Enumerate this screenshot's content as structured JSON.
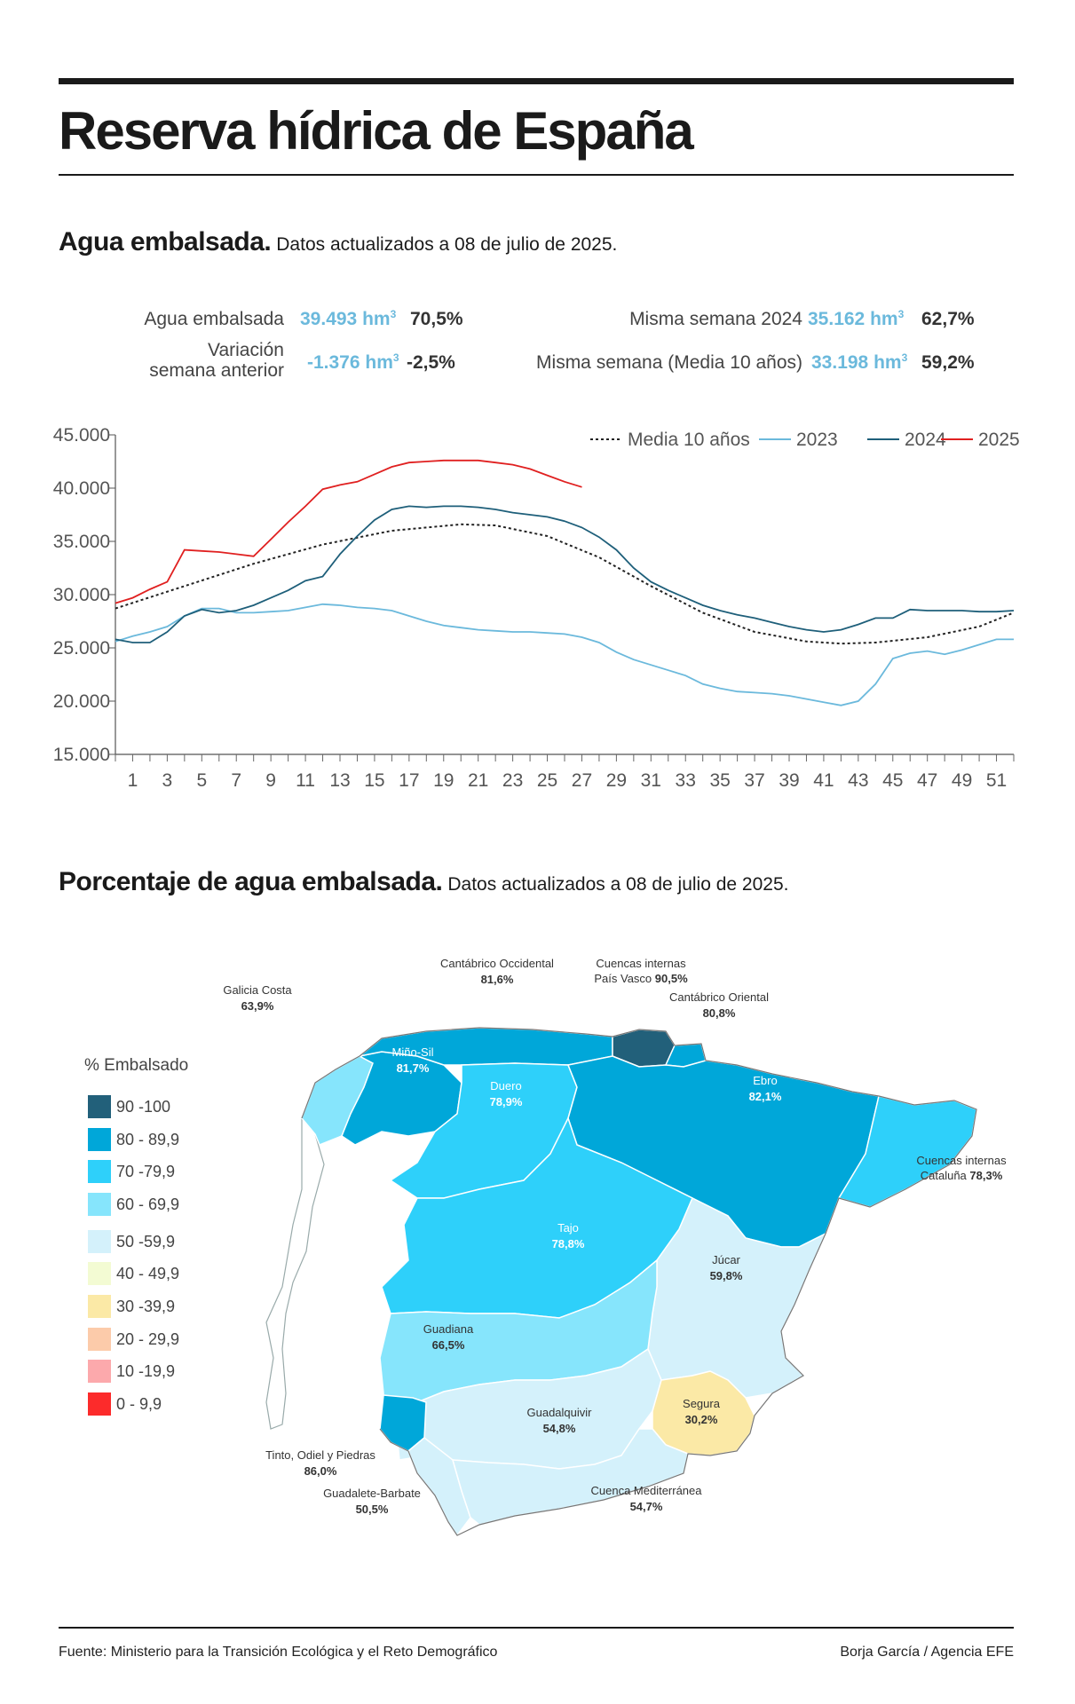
{
  "title": "Reserva hídrica de España",
  "section1": {
    "bold": "Agua embalsada.",
    "rest": "Datos actualizados a 08 de julio de 2025."
  },
  "stats": {
    "agua_label": "Agua embalsada",
    "agua_value": "39.493 hm",
    "agua_pct": "70,5%",
    "var_label_1": "Variación",
    "var_label_2": "semana anterior",
    "var_value": "-1.376 hm",
    "var_pct": "-2,5%",
    "s2024_label": "Misma semana 2024",
    "s2024_value": "35.162 hm",
    "s2024_pct": "62,7%",
    "media_label": "Misma semana (Media 10 años)",
    "media_value": "33.198 hm",
    "media_pct": "59,2%",
    "unit_exp": "3"
  },
  "chart_data": {
    "type": "line",
    "xlabel": "",
    "ylabel": "",
    "xlim": [
      0,
      52
    ],
    "ylim": [
      15000,
      45000
    ],
    "x_ticks": [
      1,
      3,
      5,
      7,
      9,
      11,
      13,
      15,
      17,
      19,
      21,
      23,
      25,
      27,
      29,
      31,
      33,
      35,
      37,
      39,
      41,
      43,
      45,
      47,
      49,
      51
    ],
    "y_ticks": [
      {
        "value": 45000,
        "label": "45.000"
      },
      {
        "value": 40000,
        "label": "40.000"
      },
      {
        "value": 35000,
        "label": "35.000"
      },
      {
        "value": 30000,
        "label": "30.000"
      },
      {
        "value": 25000,
        "label": "25.000"
      },
      {
        "value": 20000,
        "label": "20.000"
      },
      {
        "value": 15000,
        "label": "15.000"
      }
    ],
    "series": [
      {
        "name": "Media 10 años",
        "color": "#222222",
        "dash": true,
        "points": [
          [
            0,
            28700
          ],
          [
            4,
            30800
          ],
          [
            8,
            32900
          ],
          [
            12,
            34700
          ],
          [
            16,
            36000
          ],
          [
            20,
            36600
          ],
          [
            22,
            36500
          ],
          [
            25,
            35500
          ],
          [
            28,
            33500
          ],
          [
            31,
            30800
          ],
          [
            34,
            28300
          ],
          [
            37,
            26500
          ],
          [
            40,
            25600
          ],
          [
            42,
            25400
          ],
          [
            44,
            25500
          ],
          [
            47,
            26000
          ],
          [
            50,
            27000
          ],
          [
            52,
            28300
          ]
        ]
      },
      {
        "name": "2023",
        "color": "#6bb9dc",
        "dash": false,
        "points": [
          [
            0,
            25600
          ],
          [
            1,
            26100
          ],
          [
            2,
            26500
          ],
          [
            3,
            27000
          ],
          [
            4,
            28000
          ],
          [
            5,
            28700
          ],
          [
            6,
            28700
          ],
          [
            7,
            28300
          ],
          [
            8,
            28300
          ],
          [
            9,
            28400
          ],
          [
            10,
            28500
          ],
          [
            11,
            28800
          ],
          [
            12,
            29100
          ],
          [
            13,
            29000
          ],
          [
            14,
            28800
          ],
          [
            15,
            28700
          ],
          [
            16,
            28500
          ],
          [
            17,
            28000
          ],
          [
            18,
            27500
          ],
          [
            19,
            27100
          ],
          [
            20,
            26900
          ],
          [
            21,
            26700
          ],
          [
            22,
            26600
          ],
          [
            23,
            26500
          ],
          [
            24,
            26500
          ],
          [
            25,
            26400
          ],
          [
            26,
            26300
          ],
          [
            27,
            26000
          ],
          [
            28,
            25500
          ],
          [
            29,
            24600
          ],
          [
            30,
            23900
          ],
          [
            31,
            23400
          ],
          [
            32,
            22900
          ],
          [
            33,
            22400
          ],
          [
            34,
            21600
          ],
          [
            35,
            21200
          ],
          [
            36,
            20900
          ],
          [
            37,
            20800
          ],
          [
            38,
            20700
          ],
          [
            39,
            20500
          ],
          [
            40,
            20200
          ],
          [
            41,
            19900
          ],
          [
            42,
            19600
          ],
          [
            43,
            20000
          ],
          [
            44,
            21600
          ],
          [
            45,
            24000
          ],
          [
            46,
            24500
          ],
          [
            47,
            24700
          ],
          [
            48,
            24400
          ],
          [
            49,
            24800
          ],
          [
            50,
            25300
          ],
          [
            51,
            25800
          ],
          [
            52,
            25800
          ]
        ]
      },
      {
        "name": "2024",
        "color": "#1e5f7a",
        "dash": false,
        "points": [
          [
            0,
            25800
          ],
          [
            1,
            25500
          ],
          [
            2,
            25500
          ],
          [
            3,
            26500
          ],
          [
            4,
            28000
          ],
          [
            5,
            28600
          ],
          [
            6,
            28300
          ],
          [
            7,
            28500
          ],
          [
            8,
            29000
          ],
          [
            9,
            29700
          ],
          [
            10,
            30400
          ],
          [
            11,
            31300
          ],
          [
            12,
            31700
          ],
          [
            13,
            33800
          ],
          [
            14,
            35500
          ],
          [
            15,
            37000
          ],
          [
            16,
            38000
          ],
          [
            17,
            38300
          ],
          [
            18,
            38200
          ],
          [
            19,
            38300
          ],
          [
            20,
            38300
          ],
          [
            21,
            38200
          ],
          [
            22,
            38000
          ],
          [
            23,
            37700
          ],
          [
            24,
            37500
          ],
          [
            25,
            37300
          ],
          [
            26,
            36900
          ],
          [
            27,
            36300
          ],
          [
            28,
            35400
          ],
          [
            29,
            34200
          ],
          [
            30,
            32500
          ],
          [
            31,
            31200
          ],
          [
            32,
            30400
          ],
          [
            33,
            29700
          ],
          [
            34,
            29000
          ],
          [
            35,
            28500
          ],
          [
            36,
            28100
          ],
          [
            37,
            27800
          ],
          [
            38,
            27400
          ],
          [
            39,
            27000
          ],
          [
            40,
            26700
          ],
          [
            41,
            26500
          ],
          [
            42,
            26700
          ],
          [
            43,
            27200
          ],
          [
            44,
            27800
          ],
          [
            45,
            27800
          ],
          [
            46,
            28600
          ],
          [
            47,
            28500
          ],
          [
            48,
            28500
          ],
          [
            49,
            28500
          ],
          [
            50,
            28400
          ],
          [
            51,
            28400
          ],
          [
            52,
            28500
          ]
        ]
      },
      {
        "name": "2025",
        "color": "#e02020",
        "dash": false,
        "points": [
          [
            0,
            29200
          ],
          [
            1,
            29700
          ],
          [
            2,
            30500
          ],
          [
            3,
            31200
          ],
          [
            4,
            34200
          ],
          [
            5,
            34100
          ],
          [
            6,
            34000
          ],
          [
            7,
            33800
          ],
          [
            8,
            33600
          ],
          [
            9,
            35200
          ],
          [
            10,
            36800
          ],
          [
            11,
            38300
          ],
          [
            12,
            39900
          ],
          [
            13,
            40300
          ],
          [
            14,
            40600
          ],
          [
            15,
            41300
          ],
          [
            16,
            42000
          ],
          [
            17,
            42400
          ],
          [
            18,
            42500
          ],
          [
            19,
            42600
          ],
          [
            20,
            42600
          ],
          [
            21,
            42600
          ],
          [
            22,
            42400
          ],
          [
            23,
            42200
          ],
          [
            24,
            41800
          ],
          [
            25,
            41200
          ],
          [
            26,
            40600
          ],
          [
            27,
            40100
          ]
        ]
      }
    ]
  },
  "section2": {
    "bold": "Porcentaje de agua embalsada.",
    "rest": "Datos actualizados a 08 de julio de 2025."
  },
  "map": {
    "regions": [
      {
        "name": "Cantábrico Occidental",
        "value": "81,6%"
      },
      {
        "name": "Cuencas internas",
        "name2": "País Vasco",
        "value": "90,5%"
      },
      {
        "name": "Cantábrico Oriental",
        "value": "80,8%"
      },
      {
        "name": "Galicia Costa",
        "value": "63,9%"
      },
      {
        "name": "Miño-Sil",
        "value": "81,7%"
      },
      {
        "name": "Duero",
        "value": "78,9%"
      },
      {
        "name": "Ebro",
        "value": "82,1%"
      },
      {
        "name": "Cuencas internas",
        "name2": "Cataluña",
        "value": "78,3%"
      },
      {
        "name": "Tajo",
        "value": "78,8%"
      },
      {
        "name": "Júcar",
        "value": "59,8%"
      },
      {
        "name": "Guadiana",
        "value": "66,5%"
      },
      {
        "name": "Segura",
        "value": "30,2%"
      },
      {
        "name": "Guadalquivir",
        "value": "54,8%"
      },
      {
        "name": "Tinto, Odiel y Piedras",
        "value": "86,0%"
      },
      {
        "name": "Guadalete-Barbate",
        "value": "50,5%"
      },
      {
        "name": "Cuenca Mediterránea",
        "value": "54,7%"
      }
    ]
  },
  "legend": {
    "title": "% Embalsado",
    "items": [
      {
        "label": "90 -100",
        "color": "#22607a"
      },
      {
        "label": "80 - 89,9",
        "color": "#00a7d9"
      },
      {
        "label": "70 -79,9",
        "color": "#2ed0fa"
      },
      {
        "label": "60 - 69,9",
        "color": "#86e5fc"
      },
      {
        "label": "50 -59,9",
        "color": "#d4f1fb"
      },
      {
        "label": "40 - 49,9",
        "color": "#f3fbd3"
      },
      {
        "label": "30 -39,9",
        "color": "#fbe9a6"
      },
      {
        "label": "20 - 29,9",
        "color": "#fccbaa"
      },
      {
        "label": "10 -19,9",
        "color": "#fca9ac"
      },
      {
        "label": "0 - 9,9",
        "color": "#fc2b2b"
      }
    ]
  },
  "footer": {
    "source": "Fuente: Ministerio para la Transición Ecológica y el Reto Demográfico",
    "credit": "Borja García / Agencia EFE"
  }
}
